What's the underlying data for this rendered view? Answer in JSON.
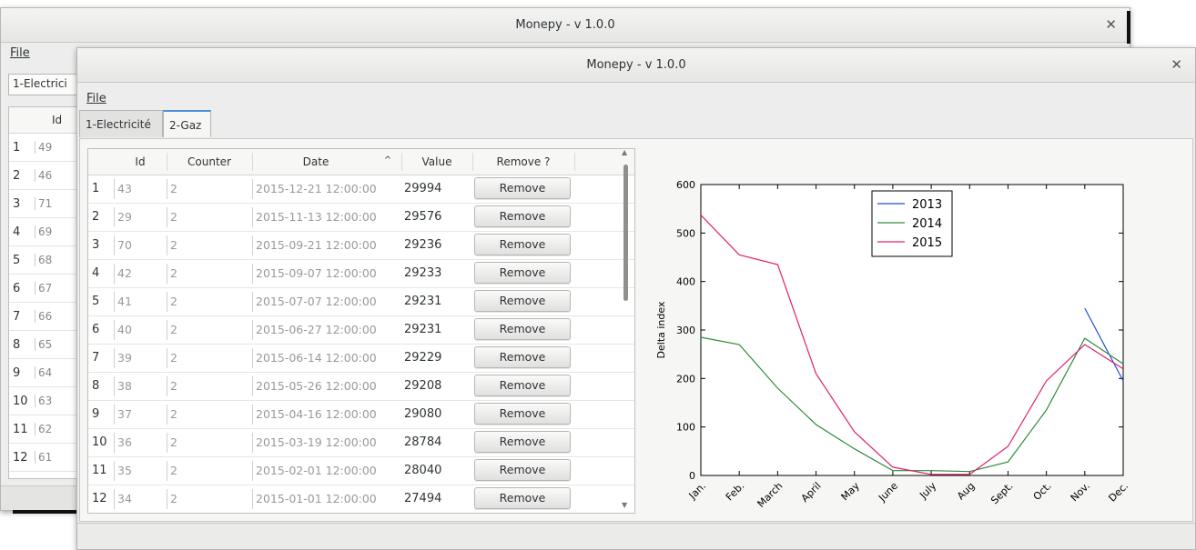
{
  "back_window": {
    "title": "Monepy - v 1.0.0",
    "close_icon": "close-icon",
    "menu": {
      "file": "File"
    },
    "combo_value": "1-Electrici",
    "table": {
      "header_id": "Id",
      "rows": [
        {
          "n": "1",
          "id": "49"
        },
        {
          "n": "2",
          "id": "46"
        },
        {
          "n": "3",
          "id": "71"
        },
        {
          "n": "4",
          "id": "69"
        },
        {
          "n": "5",
          "id": "68"
        },
        {
          "n": "6",
          "id": "67"
        },
        {
          "n": "7",
          "id": "66"
        },
        {
          "n": "8",
          "id": "65"
        },
        {
          "n": "9",
          "id": "64"
        },
        {
          "n": "10",
          "id": "63"
        },
        {
          "n": "11",
          "id": "62"
        },
        {
          "n": "12",
          "id": "61"
        }
      ]
    }
  },
  "front_window": {
    "title": "Monepy - v 1.0.0",
    "close_icon": "close-icon",
    "menu": {
      "file": "File"
    },
    "tabs": [
      {
        "label": "1-Electricité",
        "active": false
      },
      {
        "label": "2-Gaz",
        "active": true
      }
    ],
    "table": {
      "headers": {
        "id": "Id",
        "counter": "Counter",
        "date": "Date",
        "sort_icon": "chevron-up-icon",
        "value": "Value",
        "remove": "Remove ?"
      },
      "remove_label": "Remove",
      "rows": [
        {
          "n": "1",
          "id": "43",
          "counter": "2",
          "date": "2015-12-21 12:00:00",
          "value": "29994"
        },
        {
          "n": "2",
          "id": "29",
          "counter": "2",
          "date": "2015-11-13 12:00:00",
          "value": "29576"
        },
        {
          "n": "3",
          "id": "70",
          "counter": "2",
          "date": "2015-09-21 12:00:00",
          "value": "29236"
        },
        {
          "n": "4",
          "id": "42",
          "counter": "2",
          "date": "2015-09-07 12:00:00",
          "value": "29233"
        },
        {
          "n": "5",
          "id": "41",
          "counter": "2",
          "date": "2015-07-07 12:00:00",
          "value": "29231"
        },
        {
          "n": "6",
          "id": "40",
          "counter": "2",
          "date": "2015-06-27 12:00:00",
          "value": "29231"
        },
        {
          "n": "7",
          "id": "39",
          "counter": "2",
          "date": "2015-06-14 12:00:00",
          "value": "29229"
        },
        {
          "n": "8",
          "id": "38",
          "counter": "2",
          "date": "2015-05-26 12:00:00",
          "value": "29208"
        },
        {
          "n": "9",
          "id": "37",
          "counter": "2",
          "date": "2015-04-16 12:00:00",
          "value": "29080"
        },
        {
          "n": "10",
          "id": "36",
          "counter": "2",
          "date": "2015-03-19 12:00:00",
          "value": "28784"
        },
        {
          "n": "11",
          "id": "35",
          "counter": "2",
          "date": "2015-02-01 12:00:00",
          "value": "28040"
        },
        {
          "n": "12",
          "id": "34",
          "counter": "2",
          "date": "2015-01-01 12:00:00",
          "value": "27494"
        }
      ]
    }
  },
  "chart_data": {
    "type": "line",
    "title": "",
    "xlabel": "",
    "ylabel": "Delta index",
    "categories": [
      "Jan.",
      "Feb.",
      "March",
      "April",
      "May",
      "June",
      "July",
      "Aug",
      "Sept.",
      "Oct.",
      "Nov.",
      "Dec."
    ],
    "ylim": [
      0,
      600
    ],
    "yticks": [
      0,
      100,
      200,
      300,
      400,
      500,
      600
    ],
    "legend_position": "top-center",
    "grid": false,
    "series": [
      {
        "name": "2013",
        "color": "#1f4fd8",
        "values": [
          null,
          null,
          null,
          null,
          null,
          null,
          null,
          null,
          null,
          null,
          345,
          195
        ]
      },
      {
        "name": "2014",
        "color": "#2e8b3a",
        "values": [
          285,
          270,
          180,
          105,
          55,
          10,
          10,
          8,
          28,
          135,
          283,
          230
        ]
      },
      {
        "name": "2015",
        "color": "#e0206e",
        "values": [
          537,
          455,
          435,
          210,
          90,
          17,
          2,
          2,
          60,
          195,
          270,
          220
        ]
      }
    ]
  }
}
